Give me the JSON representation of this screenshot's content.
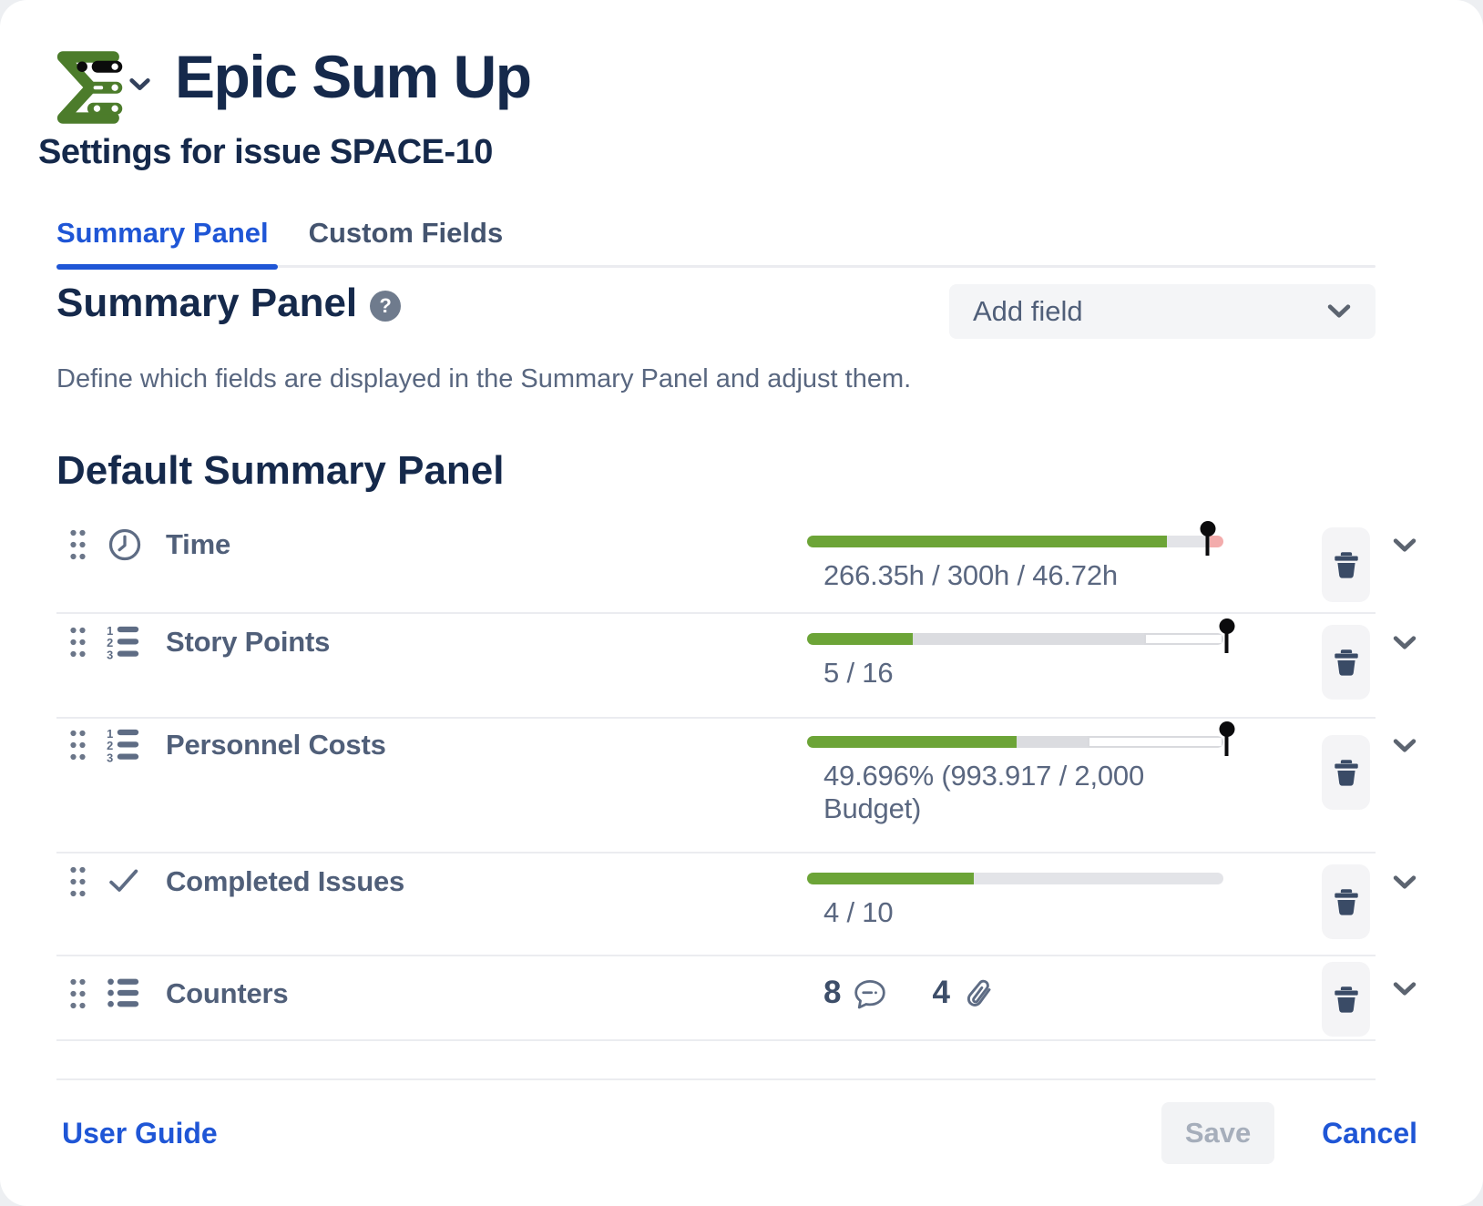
{
  "window": {
    "title": "Epic Sum Up",
    "subtitle": "Settings for issue SPACE-10",
    "logo_icon": "epic-sum-up-logo",
    "logo_chevron_icon": "chevron-down-small-icon"
  },
  "tabs": [
    {
      "label": "Summary Panel",
      "active": true
    },
    {
      "label": "Custom Fields",
      "active": false
    }
  ],
  "summary_section": {
    "heading": "Summary Panel",
    "help_icon": "question-mark-icon",
    "help_glyph": "?",
    "description": "Define which fields are displayed in the Summary Panel and adjust them.",
    "add_field": {
      "label": "Add field",
      "chevron_icon": "chevron-down-icon"
    }
  },
  "default_panel": {
    "heading": "Default Summary Panel",
    "rows": [
      {
        "label": "Time",
        "icon": "clock-icon",
        "value": "266.35h / 300h / 46.72h",
        "bar": {
          "segments": [
            {
              "kind": "green",
              "pct": 86.4
            },
            {
              "kind": "track",
              "pct": 10.4
            },
            {
              "kind": "pink",
              "pct": 3.2
            }
          ],
          "pin_pct": 96.2
        }
      },
      {
        "label": "Story Points",
        "icon": "numbered-list-icon",
        "value": "5 / 16",
        "bar": {
          "segments": [
            {
              "kind": "green",
              "pct": 25.4
            },
            {
              "kind": "track-dark",
              "pct": 55.5
            },
            {
              "kind": "outline",
              "pct": 19.1
            }
          ],
          "pin_pct": 100.8
        }
      },
      {
        "label": "Personnel Costs",
        "icon": "numbered-list-icon",
        "value": "49.696% (993.917 / 2,000 Budget)",
        "bar": {
          "segments": [
            {
              "kind": "green",
              "pct": 50.4
            },
            {
              "kind": "track-dark",
              "pct": 17.1
            },
            {
              "kind": "outline",
              "pct": 32.5
            }
          ],
          "pin_pct": 100.8
        }
      },
      {
        "label": "Completed Issues",
        "icon": "check-icon",
        "value": "4 / 10",
        "bar": {
          "segments": [
            {
              "kind": "green",
              "pct": 40
            },
            {
              "kind": "track",
              "pct": 60
            }
          ],
          "pin_pct": null
        }
      },
      {
        "label": "Counters",
        "icon": "bullet-list-icon",
        "counters": [
          {
            "value": "8",
            "icon": "comment-icon"
          },
          {
            "value": "4",
            "icon": "attachment-icon"
          }
        ]
      }
    ],
    "row_actions": {
      "delete_icon": "trash-icon",
      "expand_icon": "chevron-down-icon"
    }
  },
  "footer": {
    "user_guide_label": "User Guide",
    "save_label": "Save",
    "cancel_label": "Cancel"
  },
  "colors": {
    "accent_blue": "#1F56D6",
    "heading_navy": "#15294B",
    "progress_green": "#6CA437",
    "overflow_pink": "#F3ACAC",
    "pin_black": "#0B0B0D"
  }
}
